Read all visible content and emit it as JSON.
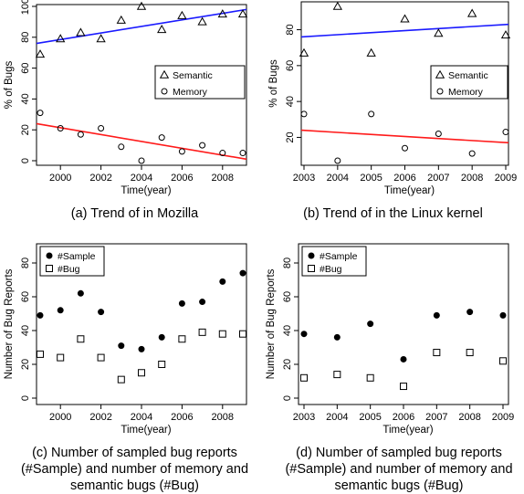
{
  "chart_data": [
    {
      "type": "scatter",
      "caption": "(a) Trend of in Mozilla",
      "xlabel": "Time(year)",
      "ylabel": "% of Bugs",
      "xlim": [
        1999,
        2009
      ],
      "ylim": [
        0,
        100
      ],
      "xticks": [
        2000,
        2002,
        2004,
        2006,
        2008
      ],
      "yticks": [
        0,
        20,
        40,
        60,
        80,
        100
      ],
      "legend_position": "center-right",
      "series": [
        {
          "name": "Semantic",
          "marker": "triangle",
          "x": [
            1999,
            2000,
            2001,
            2002,
            2003,
            2004,
            2005,
            2006,
            2007,
            2008,
            2009
          ],
          "y": [
            69,
            79,
            83,
            79,
            91,
            100,
            85,
            94,
            90,
            95,
            95
          ],
          "trend": [
            76,
            98
          ],
          "trend_color": "#1a1aff"
        },
        {
          "name": "Memory",
          "marker": "circle",
          "x": [
            1999,
            2000,
            2001,
            2002,
            2003,
            2004,
            2005,
            2006,
            2007,
            2008,
            2009
          ],
          "y": [
            31,
            21,
            17,
            21,
            9,
            0,
            15,
            6,
            10,
            5,
            5
          ],
          "trend": [
            24,
            1
          ],
          "trend_color": "#ff1a1a"
        }
      ]
    },
    {
      "type": "scatter",
      "caption": "(b) Trend of in the Linux kernel",
      "xlabel": "Time(year)",
      "ylabel": "% of Bugs",
      "xlim": [
        2003,
        2009
      ],
      "ylim": [
        7,
        93
      ],
      "xticks": [
        2003,
        2004,
        2005,
        2006,
        2007,
        2008,
        2009
      ],
      "yticks": [
        20,
        40,
        60,
        80
      ],
      "legend_position": "center-right",
      "series": [
        {
          "name": "Semantic",
          "marker": "triangle",
          "x": [
            2003,
            2004,
            2005,
            2006,
            2007,
            2008,
            2009
          ],
          "y": [
            67,
            93,
            67,
            86,
            78,
            89,
            77
          ],
          "trend": [
            76,
            83
          ],
          "trend_color": "#1a1aff"
        },
        {
          "name": "Memory",
          "marker": "circle",
          "x": [
            2003,
            2004,
            2005,
            2006,
            2007,
            2008,
            2009
          ],
          "y": [
            33,
            7,
            33,
            14,
            22,
            11,
            23
          ],
          "trend": [
            24,
            17
          ],
          "trend_color": "#ff1a1a"
        }
      ]
    },
    {
      "type": "scatter",
      "caption": "(c) Number of sampled bug reports (#Sample) and number of memory and semantic bugs (#Bug)",
      "xlabel": "Time(year)",
      "ylabel": "Number of Bug Reports",
      "xlim": [
        1999,
        2009
      ],
      "ylim": [
        0,
        80
      ],
      "xticks": [
        2000,
        2002,
        2004,
        2006,
        2008
      ],
      "yticks": [
        0,
        20,
        40,
        60,
        80
      ],
      "legend_position": "top-left",
      "series": [
        {
          "name": "#Sample",
          "marker": "filled-circle",
          "x": [
            1999,
            2000,
            2001,
            2002,
            2003,
            2004,
            2005,
            2006,
            2007,
            2008,
            2009
          ],
          "y": [
            49,
            52,
            62,
            51,
            31,
            29,
            36,
            56,
            57,
            69,
            74
          ]
        },
        {
          "name": "#Bug",
          "marker": "square",
          "x": [
            1999,
            2000,
            2001,
            2002,
            2003,
            2004,
            2005,
            2006,
            2007,
            2008,
            2009
          ],
          "y": [
            26,
            24,
            35,
            24,
            11,
            15,
            20,
            35,
            39,
            38,
            38
          ]
        }
      ]
    },
    {
      "type": "scatter",
      "caption": "(d) Number of sampled bug reports (#Sample) and number of memory and semantic bugs (#Bug)",
      "xlabel": "Time(year)",
      "ylabel": "Number of Bug Reports",
      "xlim": [
        2003,
        2009
      ],
      "ylim": [
        0,
        80
      ],
      "xticks": [
        2003,
        2004,
        2005,
        2006,
        2007,
        2008,
        2009
      ],
      "yticks": [
        0,
        20,
        40,
        60,
        80
      ],
      "legend_position": "top-left",
      "series": [
        {
          "name": "#Sample",
          "marker": "filled-circle",
          "x": [
            2003,
            2004,
            2005,
            2006,
            2007,
            2008,
            2009
          ],
          "y": [
            38,
            36,
            44,
            23,
            49,
            51,
            49
          ]
        },
        {
          "name": "#Bug",
          "marker": "square",
          "x": [
            2003,
            2004,
            2005,
            2006,
            2007,
            2008,
            2009
          ],
          "y": [
            12,
            14,
            12,
            7,
            27,
            27,
            22
          ]
        }
      ]
    }
  ],
  "captions": {
    "a": "(a) Trend of in Mozilla",
    "b": "(b) Trend of in the Linux kernel",
    "c_line1": "(c) Number of sampled bug reports",
    "c_line2": "(#Sample) and number of memory and",
    "c_line3": "semantic bugs (#Bug)",
    "d_line1": "(d) Number of sampled bug reports",
    "d_line2": "(#Sample) and number of memory and",
    "d_line3": "semantic bugs (#Bug)"
  }
}
